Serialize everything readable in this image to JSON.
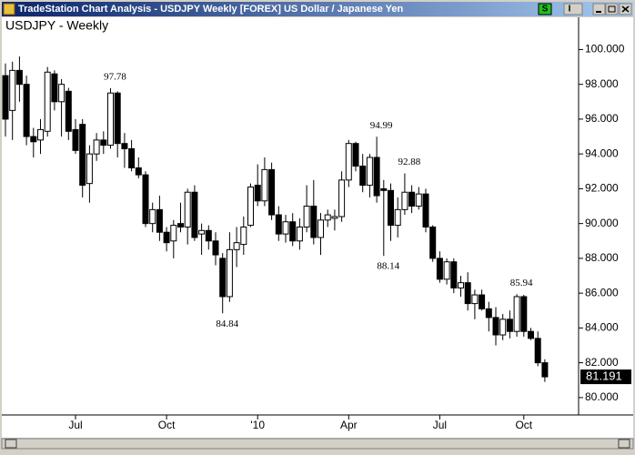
{
  "window": {
    "title": "TradeStation Chart Analysis - USDJPY Weekly [FOREX] US Dollar / Japanese Yen",
    "controls": [
      "S",
      "I"
    ]
  },
  "chart_data": {
    "type": "candlestick",
    "title": "USDJPY - Weekly",
    "categories": [
      null,
      null,
      null,
      null,
      null,
      null,
      null,
      null,
      null,
      null,
      "Jul",
      null,
      null,
      null,
      null,
      null,
      null,
      null,
      null,
      null,
      null,
      null,
      null,
      "Oct",
      null,
      null,
      null,
      null,
      null,
      null,
      null,
      null,
      null,
      null,
      null,
      null,
      "'10",
      null,
      null,
      null,
      null,
      null,
      null,
      null,
      null,
      null,
      null,
      null,
      null,
      "Apr",
      null,
      null,
      null,
      null,
      null,
      null,
      null,
      null,
      null,
      null,
      null,
      null,
      "Jul",
      null,
      null,
      null,
      null,
      null,
      null,
      null,
      null,
      null,
      null,
      null,
      "Oct",
      null,
      null,
      null
    ],
    "open": [
      98.5,
      96.5,
      98.8,
      98.0,
      95.0,
      94.8,
      95.3,
      98.6,
      97.0,
      97.6,
      95.4,
      95.7,
      92.3,
      94.0,
      94.8,
      94.5,
      97.5,
      94.6,
      94.3,
      93.2,
      92.8,
      90.0,
      90.8,
      89.5,
      89.0,
      90.0,
      89.8,
      91.8,
      89.4,
      89.6,
      89.0,
      88.0,
      85.8,
      88.5,
      88.8,
      89.9,
      92.2,
      91.3,
      93.1,
      90.5,
      89.4,
      90.1,
      89.0,
      89.8,
      91.0,
      89.2,
      90.2,
      90.3,
      90.4,
      92.5,
      94.6,
      93.3,
      92.2,
      93.8,
      92.0,
      91.9,
      89.9,
      90.8,
      91.8,
      91.0,
      91.7,
      89.8,
      88.0,
      86.8,
      87.8,
      86.3,
      86.6,
      85.4,
      85.9,
      85.1,
      84.6,
      83.6,
      84.5,
      83.8,
      85.8,
      83.8,
      83.4,
      82.0
    ],
    "high": [
      99.2,
      99.3,
      99.6,
      98.5,
      95.5,
      96.0,
      99.0,
      98.8,
      98.3,
      97.8,
      96.0,
      96.0,
      94.5,
      95.2,
      95.3,
      97.78,
      97.6,
      95.2,
      94.8,
      93.8,
      93.0,
      91.2,
      91.6,
      89.8,
      90.2,
      91.2,
      92.0,
      92.2,
      90.0,
      89.9,
      89.5,
      88.3,
      89.5,
      89.8,
      90.4,
      92.3,
      93.4,
      93.8,
      93.5,
      91.0,
      90.5,
      90.6,
      90.3,
      92.2,
      92.5,
      90.6,
      90.8,
      90.8,
      93.0,
      94.8,
      94.7,
      94.0,
      94.0,
      94.99,
      92.5,
      92.3,
      91.5,
      92.88,
      92.2,
      92.1,
      92.0,
      89.9,
      88.4,
      88.0,
      88.0,
      87.0,
      87.2,
      86.2,
      86.2,
      85.5,
      85.2,
      84.8,
      85.0,
      85.94,
      85.9,
      84.0,
      83.8,
      82.2
    ],
    "low": [
      95.0,
      94.8,
      97.0,
      94.5,
      93.8,
      94.0,
      95.0,
      96.5,
      95.0,
      94.8,
      94.0,
      91.5,
      91.2,
      93.6,
      94.0,
      94.3,
      93.8,
      93.2,
      93.0,
      92.6,
      89.8,
      89.5,
      89.0,
      88.4,
      88.0,
      89.5,
      88.8,
      89.0,
      88.2,
      88.5,
      87.6,
      84.84,
      85.5,
      87.5,
      88.2,
      89.8,
      91.0,
      91.0,
      90.2,
      89.0,
      88.9,
      88.7,
      88.5,
      89.5,
      88.8,
      88.2,
      89.8,
      89.6,
      90.1,
      92.1,
      93.0,
      91.8,
      91.5,
      91.2,
      88.14,
      89.0,
      89.2,
      90.5,
      90.6,
      90.8,
      89.5,
      87.8,
      86.6,
      86.5,
      86.0,
      85.8,
      85.0,
      84.5,
      85.0,
      83.8,
      83.0,
      83.3,
      83.4,
      83.5,
      83.5,
      83.3,
      81.8,
      80.9
    ],
    "close": [
      96.0,
      98.8,
      98.0,
      95.0,
      94.7,
      95.4,
      98.7,
      97.0,
      98.0,
      95.3,
      94.2,
      92.2,
      94.0,
      94.8,
      94.5,
      97.5,
      94.6,
      94.3,
      93.2,
      92.8,
      90.0,
      90.8,
      89.5,
      88.9,
      89.9,
      89.8,
      91.8,
      89.2,
      89.6,
      89.0,
      88.2,
      85.8,
      88.5,
      88.9,
      89.8,
      92.1,
      91.3,
      93.1,
      90.5,
      89.4,
      90.1,
      89.0,
      89.8,
      91.0,
      89.2,
      90.2,
      90.5,
      90.4,
      92.5,
      94.6,
      93.3,
      92.2,
      93.8,
      91.6,
      91.9,
      89.9,
      90.8,
      91.8,
      91.0,
      91.7,
      89.8,
      88.0,
      86.8,
      87.8,
      86.3,
      86.6,
      85.4,
      85.9,
      85.1,
      84.6,
      83.6,
      84.5,
      83.8,
      85.8,
      83.8,
      83.4,
      82.0,
      81.191
    ],
    "up_color": "#ffffff",
    "down_color": "#000000",
    "ylim": [
      79,
      101.8
    ],
    "yticks": [
      {
        "value": 80,
        "label": "80.000"
      },
      {
        "value": 82,
        "label": "82.000"
      },
      {
        "value": 84,
        "label": "84.000"
      },
      {
        "value": 86,
        "label": "86.000"
      },
      {
        "value": 88,
        "label": "88.000"
      },
      {
        "value": 90,
        "label": "90.000"
      },
      {
        "value": 92,
        "label": "92.000"
      },
      {
        "value": 94,
        "label": "94.000"
      },
      {
        "value": 96,
        "label": "96.000"
      },
      {
        "value": 98,
        "label": "98.000"
      },
      {
        "value": 100,
        "label": "100.000"
      }
    ],
    "annotations": [
      97.78,
      84.84,
      94.99,
      88.14,
      92.88,
      85.94
    ],
    "last_price": 81.191
  }
}
